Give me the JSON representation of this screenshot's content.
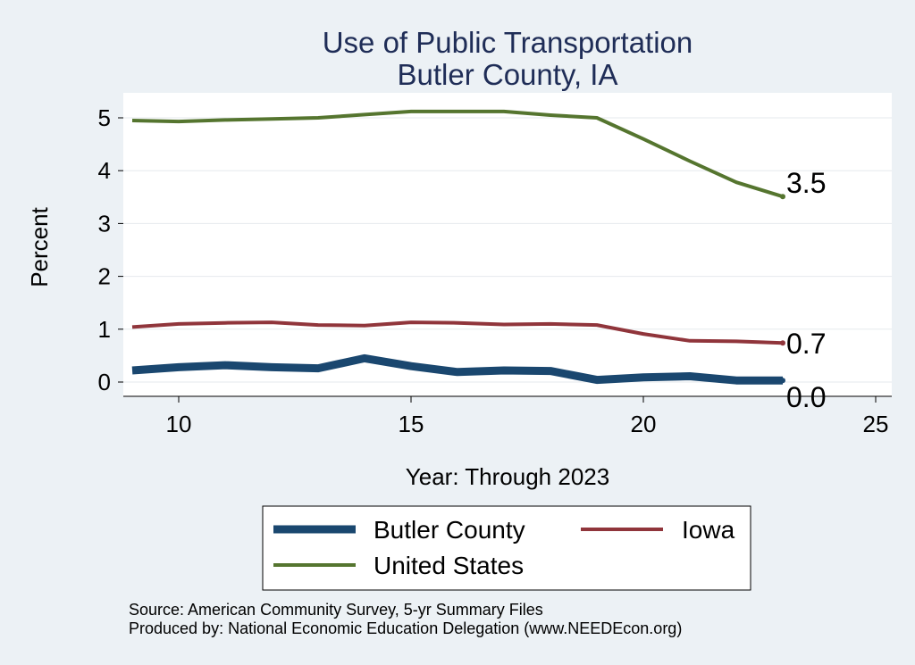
{
  "chart_data": {
    "type": "line",
    "title": "Use of Public Transportation",
    "subtitle": "Butler County, IA",
    "xlabel": "Year: Through 2023",
    "ylabel": "Percent",
    "xlim": [
      9,
      25
    ],
    "ylim": [
      0,
      5
    ],
    "x_ticks": [
      10,
      15,
      20,
      25
    ],
    "y_ticks": [
      0,
      1,
      2,
      3,
      4,
      5
    ],
    "grid": true,
    "legend_position": "bottom",
    "series": [
      {
        "name": "Butler County",
        "color": "#1a476f",
        "x": [
          9,
          10,
          11,
          12,
          13,
          14,
          15,
          16,
          17,
          18,
          19,
          20,
          21,
          22,
          23
        ],
        "values": [
          0.22,
          0.28,
          0.32,
          0.28,
          0.26,
          0.45,
          0.3,
          0.19,
          0.22,
          0.21,
          0.04,
          0.09,
          0.11,
          0.03,
          0.03
        ],
        "end_label": "0.0"
      },
      {
        "name": "Iowa",
        "color": "#90353b",
        "x": [
          9,
          10,
          11,
          12,
          13,
          14,
          15,
          16,
          17,
          18,
          19,
          20,
          21,
          22,
          23
        ],
        "values": [
          1.04,
          1.1,
          1.12,
          1.13,
          1.08,
          1.07,
          1.13,
          1.12,
          1.09,
          1.1,
          1.08,
          0.91,
          0.78,
          0.77,
          0.74
        ],
        "end_label": "0.7"
      },
      {
        "name": "United States",
        "color": "#55752f",
        "x": [
          9,
          10,
          11,
          12,
          13,
          14,
          15,
          16,
          17,
          18,
          19,
          20,
          21,
          22,
          23
        ],
        "values": [
          4.95,
          4.93,
          4.96,
          4.98,
          5.0,
          5.06,
          5.12,
          5.12,
          5.12,
          5.05,
          5.0,
          4.6,
          4.18,
          3.78,
          3.51
        ],
        "end_label": "3.5"
      }
    ]
  },
  "footer": {
    "source": "Source: American Community Survey, 5-yr Summary Files",
    "produced_by": "Produced by: National Economic Education Delegation (www.NEEDEcon.org)"
  }
}
